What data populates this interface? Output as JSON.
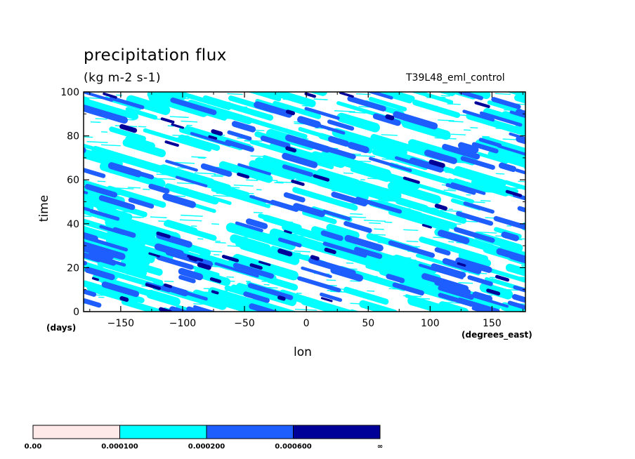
{
  "chart_data": {
    "type": "heatmap",
    "title": "precipitation flux",
    "units": "(kg m-2 s-1)",
    "experiment": "T39L48_eml_control",
    "xlabel": "lon",
    "ylabel": "time",
    "x_unit": "(degrees_east)",
    "y_unit": "(days)",
    "xlim": [
      -180,
      177
    ],
    "ylim": [
      0,
      100
    ],
    "xticks": [
      -150,
      -100,
      -50,
      0,
      50,
      100,
      150
    ],
    "xtick_labels": [
      "−150",
      "−100",
      "−50",
      "0",
      "50",
      "100",
      "150"
    ],
    "yticks": [
      0,
      20,
      40,
      60,
      80,
      100
    ],
    "ytick_labels": [
      "0",
      "20",
      "40",
      "60",
      "80",
      "100"
    ],
    "levels": [
      0.0,
      0.0001,
      0.0002,
      0.0006
    ],
    "level_labels": [
      "0.00",
      "0.000100",
      "0.000200",
      "0.000600",
      "∞"
    ],
    "level_colors": [
      "#ffe8e8",
      "#00ffff",
      "#1e5eff",
      "#000099"
    ],
    "pattern": "eastward-tilted streaks descending to the east (westward-propagating disturbances)"
  }
}
